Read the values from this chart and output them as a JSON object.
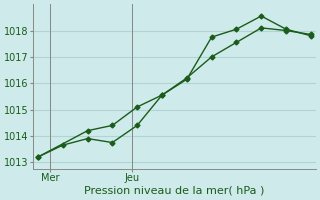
{
  "line1_x": [
    0,
    1,
    2,
    3,
    4,
    5,
    6,
    7,
    8,
    9,
    10,
    11
  ],
  "line1_y": [
    1013.2,
    1013.65,
    1013.9,
    1013.75,
    1014.4,
    1015.55,
    1016.15,
    1017.75,
    1018.05,
    1018.55,
    1018.05,
    1017.8
  ],
  "line2_x": [
    0,
    2,
    3,
    4,
    5,
    6,
    7,
    8,
    9,
    10,
    11
  ],
  "line2_y": [
    1013.2,
    1014.2,
    1014.4,
    1015.1,
    1015.55,
    1016.2,
    1017.0,
    1017.55,
    1018.1,
    1018.0,
    1017.85
  ],
  "line_color": "#1a5c1a",
  "bg_color": "#ceeaea",
  "grid_color": "#b0d4d4",
  "xlabel": "Pression niveau de la mer( hPa )",
  "ylim": [
    1012.75,
    1019.0
  ],
  "yticks": [
    1013,
    1014,
    1015,
    1016,
    1017,
    1018
  ],
  "xlim": [
    -0.2,
    11.2
  ],
  "vline_x": [
    0.5,
    3.8
  ],
  "xtick_positions": [
    0.5,
    3.8
  ],
  "xtick_labels": [
    "Mer",
    "Jeu"
  ],
  "marker": "D",
  "markersize": 2.5,
  "linewidth": 1.0,
  "xlabel_fontsize": 8,
  "ytick_fontsize": 7,
  "xtick_fontsize": 7
}
